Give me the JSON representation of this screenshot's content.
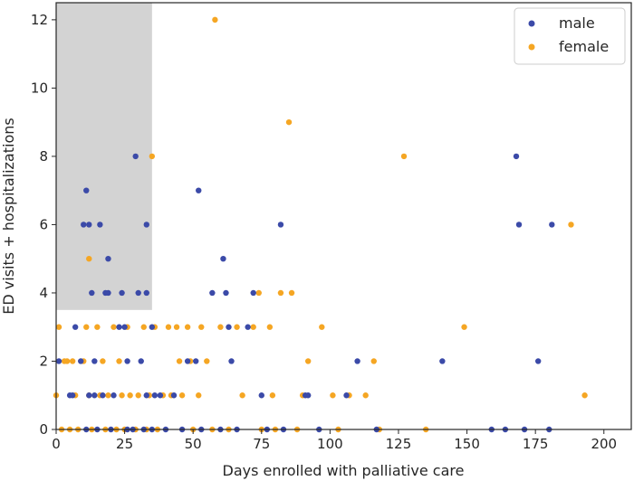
{
  "chart_data": {
    "type": "scatter",
    "title": "",
    "xlabel": "Days enrolled with palliative care",
    "ylabel": "ED visits + hospitalizations",
    "xlim": [
      0,
      210
    ],
    "ylim": [
      0,
      12.5
    ],
    "xticks": [
      0,
      25,
      50,
      75,
      100,
      125,
      150,
      175,
      200
    ],
    "yticks": [
      0,
      2,
      4,
      6,
      8,
      10,
      12
    ],
    "grid": false,
    "legend_position": "top-right",
    "shaded_region": {
      "x": [
        0,
        35
      ],
      "y": [
        3.5,
        12.5
      ],
      "color": "#d3d3d3"
    },
    "colors": {
      "male": "#3b4aa8",
      "female": "#f5a623"
    },
    "series": [
      {
        "name": "male",
        "points": [
          [
            1,
            2
          ],
          [
            5,
            1
          ],
          [
            6,
            1
          ],
          [
            7,
            3
          ],
          [
            9,
            2
          ],
          [
            10,
            6
          ],
          [
            11,
            7
          ],
          [
            12,
            6
          ],
          [
            11,
            0
          ],
          [
            12,
            1
          ],
          [
            13,
            4
          ],
          [
            14,
            2
          ],
          [
            14,
            1
          ],
          [
            15,
            0
          ],
          [
            16,
            6
          ],
          [
            17,
            1
          ],
          [
            18,
            4
          ],
          [
            19,
            4
          ],
          [
            19,
            5
          ],
          [
            20,
            0
          ],
          [
            21,
            1
          ],
          [
            23,
            3
          ],
          [
            24,
            4
          ],
          [
            25,
            3
          ],
          [
            26,
            2
          ],
          [
            26,
            0
          ],
          [
            28,
            0
          ],
          [
            29,
            8
          ],
          [
            30,
            4
          ],
          [
            31,
            2
          ],
          [
            32,
            0
          ],
          [
            33,
            6
          ],
          [
            33,
            4
          ],
          [
            33,
            1
          ],
          [
            35,
            3
          ],
          [
            35,
            0
          ],
          [
            36,
            1
          ],
          [
            38,
            1
          ],
          [
            40,
            0
          ],
          [
            43,
            1
          ],
          [
            46,
            0
          ],
          [
            48,
            2
          ],
          [
            51,
            2
          ],
          [
            52,
            7
          ],
          [
            53,
            0
          ],
          [
            57,
            4
          ],
          [
            60,
            0
          ],
          [
            61,
            5
          ],
          [
            62,
            4
          ],
          [
            63,
            3
          ],
          [
            64,
            2
          ],
          [
            66,
            0
          ],
          [
            70,
            3
          ],
          [
            72,
            4
          ],
          [
            75,
            1
          ],
          [
            77,
            0
          ],
          [
            82,
            6
          ],
          [
            83,
            0
          ],
          [
            91,
            1
          ],
          [
            92,
            1
          ],
          [
            96,
            0
          ],
          [
            106,
            1
          ],
          [
            110,
            2
          ],
          [
            117,
            0
          ],
          [
            141,
            2
          ],
          [
            159,
            0
          ],
          [
            164,
            0
          ],
          [
            168,
            8
          ],
          [
            169,
            6
          ],
          [
            171,
            0
          ],
          [
            176,
            2
          ],
          [
            180,
            0
          ],
          [
            181,
            6
          ]
        ]
      },
      {
        "name": "female",
        "points": [
          [
            0,
            1
          ],
          [
            1,
            3
          ],
          [
            2,
            0
          ],
          [
            3,
            2
          ],
          [
            4,
            2
          ],
          [
            5,
            0
          ],
          [
            6,
            2
          ],
          [
            7,
            1
          ],
          [
            8,
            0
          ],
          [
            10,
            2
          ],
          [
            11,
            3
          ],
          [
            12,
            5
          ],
          [
            12,
            1
          ],
          [
            13,
            0
          ],
          [
            15,
            3
          ],
          [
            16,
            1
          ],
          [
            17,
            2
          ],
          [
            18,
            0
          ],
          [
            19,
            1
          ],
          [
            21,
            3
          ],
          [
            22,
            0
          ],
          [
            23,
            2
          ],
          [
            24,
            1
          ],
          [
            25,
            0
          ],
          [
            26,
            3
          ],
          [
            27,
            1
          ],
          [
            29,
            0
          ],
          [
            30,
            1
          ],
          [
            32,
            3
          ],
          [
            33,
            0
          ],
          [
            34,
            1
          ],
          [
            35,
            8
          ],
          [
            36,
            3
          ],
          [
            37,
            0
          ],
          [
            39,
            1
          ],
          [
            41,
            3
          ],
          [
            42,
            1
          ],
          [
            44,
            3
          ],
          [
            45,
            2
          ],
          [
            46,
            1
          ],
          [
            48,
            3
          ],
          [
            49,
            2
          ],
          [
            50,
            0
          ],
          [
            52,
            1
          ],
          [
            53,
            3
          ],
          [
            55,
            2
          ],
          [
            57,
            0
          ],
          [
            58,
            12
          ],
          [
            60,
            3
          ],
          [
            63,
            0
          ],
          [
            66,
            3
          ],
          [
            68,
            1
          ],
          [
            72,
            3
          ],
          [
            74,
            4
          ],
          [
            75,
            0
          ],
          [
            78,
            3
          ],
          [
            79,
            1
          ],
          [
            80,
            0
          ],
          [
            82,
            4
          ],
          [
            85,
            9
          ],
          [
            86,
            4
          ],
          [
            88,
            0
          ],
          [
            90,
            1
          ],
          [
            92,
            2
          ],
          [
            97,
            3
          ],
          [
            101,
            1
          ],
          [
            103,
            0
          ],
          [
            107,
            1
          ],
          [
            113,
            1
          ],
          [
            116,
            2
          ],
          [
            118,
            0
          ],
          [
            127,
            8
          ],
          [
            135,
            0
          ],
          [
            149,
            3
          ],
          [
            188,
            6
          ],
          [
            193,
            1
          ]
        ]
      }
    ]
  }
}
